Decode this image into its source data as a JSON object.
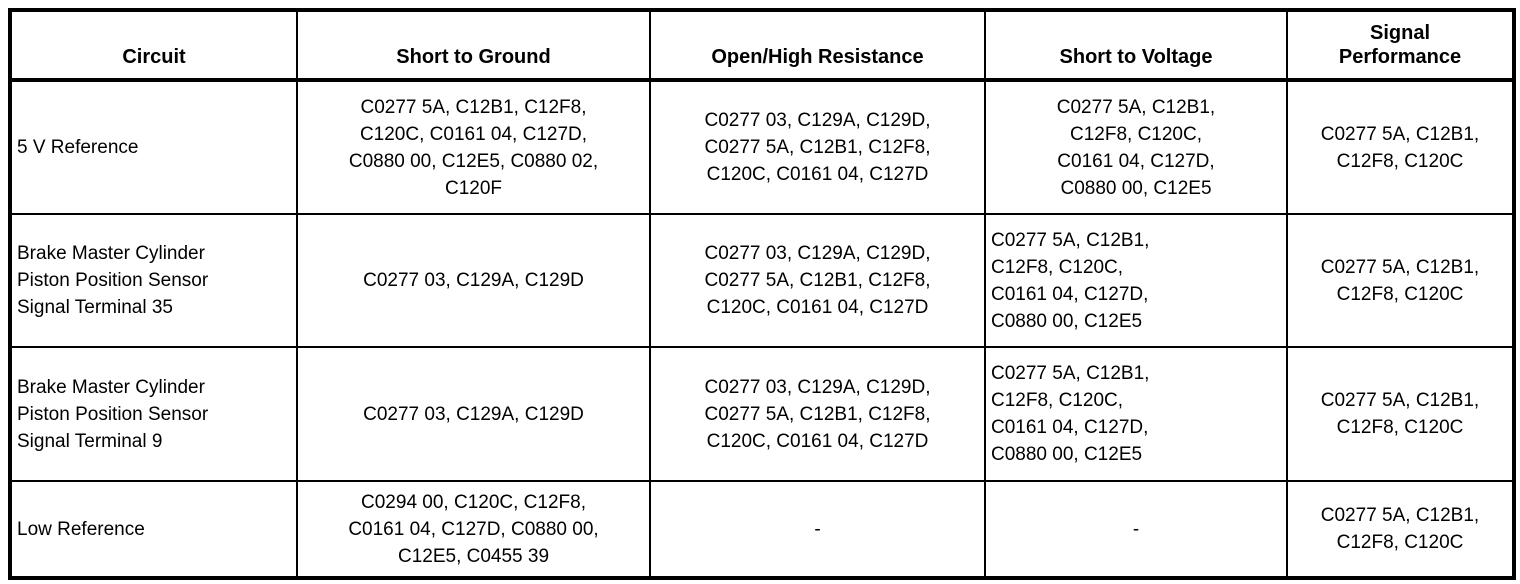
{
  "table": {
    "columns": [
      {
        "label": "Circuit"
      },
      {
        "label": "Short to Ground"
      },
      {
        "label": "Open/High Resistance"
      },
      {
        "label": "Short to Voltage"
      },
      {
        "label": "Signal\nPerformance"
      }
    ],
    "rows": [
      {
        "circuit": "5 V Reference",
        "short_to_ground": "C0277 5A, C12B1, C12F8,\nC120C, C0161 04, C127D,\nC0880 00, C12E5, C0880 02,\nC120F",
        "open_high_resistance": "C0277 03, C129A, C129D,\nC0277 5A, C12B1, C12F8,\nC120C, C0161 04, C127D",
        "short_to_voltage": "C0277 5A, C12B1,\nC12F8, C120C,\nC0161 04, C127D,\nC0880 00, C12E5",
        "signal_performance": "C0277 5A, C12B1,\nC12F8, C120C"
      },
      {
        "circuit": "Brake Master Cylinder\nPiston Position Sensor\nSignal Terminal 35",
        "short_to_ground": "C0277 03, C129A, C129D",
        "open_high_resistance": "C0277 03, C129A, C129D,\nC0277 5A, C12B1, C12F8,\nC120C, C0161 04, C127D",
        "short_to_voltage": "C0277 5A, C12B1,\nC12F8, C120C,\nC0161 04, C127D,\nC0880 00, C12E5",
        "signal_performance": "C0277 5A, C12B1,\nC12F8, C120C"
      },
      {
        "circuit": "Brake Master Cylinder\nPiston Position Sensor\nSignal Terminal 9",
        "short_to_ground": "C0277 03, C129A, C129D",
        "open_high_resistance": "C0277 03, C129A, C129D,\nC0277 5A, C12B1, C12F8,\nC120C, C0161 04, C127D",
        "short_to_voltage": "C0277 5A, C12B1,\nC12F8, C120C,\nC0161 04, C127D,\nC0880 00, C12E5",
        "signal_performance": "C0277 5A, C12B1,\nC12F8, C120C"
      },
      {
        "circuit": "Low Reference",
        "short_to_ground": "C0294 00, C120C, C12F8,\nC0161 04, C127D, C0880 00,\nC12E5, C0455 39",
        "open_high_resistance": "-",
        "short_to_voltage": "-",
        "signal_performance": "C0277 5A, C12B1,\nC12F8, C120C"
      }
    ]
  }
}
